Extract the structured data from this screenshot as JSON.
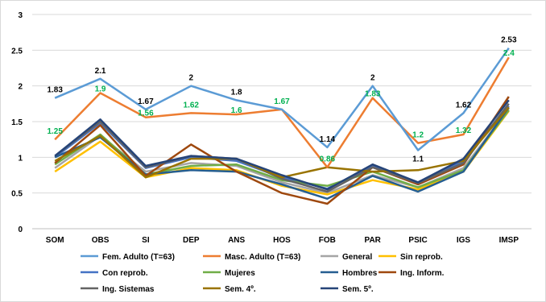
{
  "chart_data": {
    "type": "line",
    "title": "",
    "xlabel": "",
    "ylabel": "",
    "categories": [
      "SOM",
      "OBS",
      "SI",
      "DEP",
      "ANS",
      "HOS",
      "FOB",
      "PAR",
      "PSIC",
      "IGS",
      "IMSP"
    ],
    "y_ticks": [
      "0",
      "0.5",
      "1",
      "1.5",
      "2",
      "2.5",
      "3"
    ],
    "ylim": [
      0,
      3
    ],
    "grid": true,
    "legend_position": "bottom",
    "series": [
      {
        "name": "Fem. Adulto (T=63)",
        "color": "#5B9BD5",
        "width": 2.5,
        "values": [
          1.83,
          2.1,
          1.67,
          2.0,
          1.8,
          1.67,
          1.14,
          2.0,
          1.1,
          1.62,
          2.53
        ]
      },
      {
        "name": "Masc. Adulto (T=63)",
        "color": "#ED7D31",
        "width": 2.5,
        "values": [
          1.25,
          1.9,
          1.56,
          1.62,
          1.6,
          1.67,
          0.86,
          1.83,
          1.2,
          1.32,
          2.4
        ]
      },
      {
        "name": "General",
        "color": "#A5A5A5",
        "width": 2.5,
        "values": [
          0.85,
          1.3,
          0.8,
          0.92,
          0.88,
          0.65,
          0.5,
          0.75,
          0.58,
          0.85,
          1.68
        ]
      },
      {
        "name": "Sin reprob.",
        "color": "#FFC000",
        "width": 2.5,
        "values": [
          0.8,
          1.22,
          0.72,
          0.85,
          0.82,
          0.6,
          0.48,
          0.68,
          0.55,
          0.8,
          1.65
        ]
      },
      {
        "name": "Con reprob.",
        "color": "#4472C4",
        "width": 2.5,
        "values": [
          1.0,
          1.48,
          0.85,
          1.0,
          0.95,
          0.72,
          0.56,
          0.88,
          0.65,
          0.95,
          1.72
        ]
      },
      {
        "name": "Mujeres",
        "color": "#70AD47",
        "width": 2.5,
        "values": [
          0.9,
          1.32,
          0.76,
          0.88,
          0.9,
          0.68,
          0.6,
          0.8,
          0.58,
          0.82,
          1.66
        ]
      },
      {
        "name": "Hombres",
        "color": "#255E91",
        "width": 2.5,
        "values": [
          1.0,
          1.28,
          0.76,
          0.82,
          0.8,
          0.62,
          0.42,
          0.74,
          0.52,
          0.8,
          1.7
        ]
      },
      {
        "name": "Ing. Inform.",
        "color": "#9E480E",
        "width": 2.5,
        "values": [
          0.92,
          1.45,
          0.74,
          1.18,
          0.8,
          0.5,
          0.35,
          0.86,
          0.62,
          0.9,
          1.85
        ]
      },
      {
        "name": "Ing. Sistemas",
        "color": "#636363",
        "width": 2.5,
        "values": [
          1.02,
          1.5,
          0.86,
          1.02,
          0.98,
          0.7,
          0.52,
          0.86,
          0.64,
          0.92,
          1.75
        ]
      },
      {
        "name": "Sem. 4º.",
        "color": "#997300",
        "width": 2.5,
        "values": [
          0.95,
          1.3,
          0.72,
          0.98,
          0.98,
          0.72,
          0.86,
          0.8,
          0.82,
          0.95,
          1.7
        ]
      },
      {
        "name": "Sem. 5º.",
        "color": "#264478",
        "width": 2.5,
        "values": [
          1.02,
          1.53,
          0.88,
          1.02,
          0.98,
          0.75,
          0.55,
          0.9,
          0.65,
          0.98,
          1.8
        ]
      }
    ],
    "annotations": [
      {
        "text": "1.83",
        "series": 0,
        "index": 0,
        "position": "above"
      },
      {
        "text": "2.1",
        "series": 0,
        "index": 1,
        "position": "above"
      },
      {
        "text": "1.67",
        "series": 0,
        "index": 2,
        "position": "above"
      },
      {
        "text": "2",
        "series": 0,
        "index": 3,
        "position": "above"
      },
      {
        "text": "1.8",
        "series": 0,
        "index": 4,
        "position": "above"
      },
      {
        "text": "1.14",
        "series": 0,
        "index": 6,
        "position": "above"
      },
      {
        "text": "2",
        "series": 0,
        "index": 7,
        "position": "above"
      },
      {
        "text": "1.1",
        "series": 0,
        "index": 8,
        "position": "below"
      },
      {
        "text": "1.62",
        "series": 0,
        "index": 9,
        "position": "above"
      },
      {
        "text": "2.53",
        "series": 0,
        "index": 10,
        "position": "above"
      },
      {
        "text": "1.25",
        "series": 1,
        "index": 0,
        "position": "above",
        "color": "#00B050"
      },
      {
        "text": "1.9",
        "series": 1,
        "index": 1,
        "position": "above-close",
        "color": "#00B050"
      },
      {
        "text": "1.56",
        "series": 1,
        "index": 2,
        "position": "above-close",
        "color": "#00B050"
      },
      {
        "text": "1.62",
        "series": 1,
        "index": 3,
        "position": "above",
        "color": "#00B050"
      },
      {
        "text": "1.6",
        "series": 1,
        "index": 4,
        "position": "above-close",
        "color": "#00B050"
      },
      {
        "text": "1.67",
        "series": 1,
        "index": 5,
        "position": "above",
        "color": "#00B050"
      },
      {
        "text": "0.86",
        "series": 1,
        "index": 6,
        "position": "above",
        "color": "#00B050"
      },
      {
        "text": "1.83",
        "series": 1,
        "index": 7,
        "position": "above-close",
        "color": "#00B050"
      },
      {
        "text": "1.2",
        "series": 1,
        "index": 8,
        "position": "above",
        "color": "#00B050"
      },
      {
        "text": "1.32",
        "series": 1,
        "index": 9,
        "position": "above-close",
        "color": "#00B050"
      },
      {
        "text": "2.4",
        "series": 1,
        "index": 10,
        "position": "above-close",
        "color": "#00B050"
      }
    ]
  }
}
